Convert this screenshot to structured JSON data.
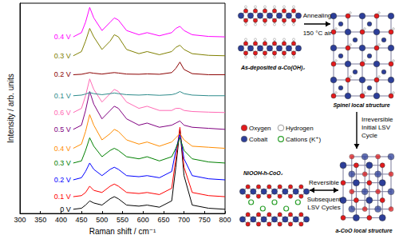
{
  "chart_data": {
    "type": "line",
    "x_label": "Raman shift / cm⁻¹",
    "y_label": "Intensity / arb. units",
    "xlim": [
      300,
      800
    ],
    "xticks": [
      300,
      350,
      400,
      450,
      500,
      550,
      600,
      650,
      700,
      750,
      800
    ],
    "ylim": [
      0,
      100
    ],
    "tick_labels": "x",
    "x": [
      430,
      450,
      460,
      470,
      480,
      500,
      520,
      530,
      540,
      560,
      590,
      610,
      640,
      670,
      680,
      690,
      700,
      720,
      760,
      800
    ],
    "series": [
      {
        "name": "0 V",
        "color": "#000000",
        "values": [
          2,
          2.5,
          4,
          6,
          5,
          4,
          7,
          8,
          7,
          4,
          3.5,
          4,
          3,
          6,
          22,
          40,
          18,
          4,
          2.5,
          2
        ]
      },
      {
        "name": "0.1 V",
        "color": "#ff0000",
        "values": [
          8,
          8.5,
          10,
          13,
          11,
          10,
          13,
          14,
          13,
          10,
          9.5,
          10,
          9,
          12,
          26,
          41,
          22,
          10,
          8.5,
          8
        ]
      },
      {
        "name": "0.2 V",
        "color": "#0000ff",
        "values": [
          16,
          17,
          20,
          24,
          21,
          18,
          21,
          22,
          21,
          18,
          17.5,
          18,
          17,
          20,
          30,
          38,
          26,
          18,
          16.5,
          16
        ]
      },
      {
        "name": "0.3 V",
        "color": "#008000",
        "values": [
          24,
          25,
          30,
          36,
          32,
          27,
          30,
          31,
          30,
          27,
          26,
          27,
          25,
          27,
          31,
          36,
          30,
          26,
          24.5,
          24
        ]
      },
      {
        "name": "0.4 V",
        "color": "#ff8c00",
        "values": [
          31,
          33,
          39,
          47,
          42,
          35,
          38,
          40,
          39,
          35,
          33,
          34,
          32,
          34,
          36,
          38,
          35,
          32,
          31.5,
          31
        ]
      },
      {
        "name": "0.5 V",
        "color": "#800080",
        "values": [
          40,
          42,
          49,
          58,
          52,
          45,
          49,
          51,
          50,
          45,
          42,
          43,
          41,
          42,
          43,
          44,
          42,
          41,
          40.5,
          40
        ]
      },
      {
        "name": "0.6 V",
        "color": "#ff69b4",
        "values": [
          48,
          50,
          56,
          64,
          59,
          53,
          57,
          59,
          58,
          53,
          50,
          51,
          49,
          49,
          50,
          50,
          49,
          48.5,
          48.2,
          48
        ]
      },
      {
        "name": "0.1 V",
        "color": "#2e8b8b",
        "values": [
          56,
          56.3,
          56.8,
          57.5,
          57,
          56.5,
          57,
          57.3,
          57,
          56.5,
          56.3,
          56.5,
          56.2,
          56.5,
          57,
          58,
          57,
          56.3,
          56,
          56
        ]
      },
      {
        "name": "0.2 V",
        "color": "#8b0000",
        "values": [
          66,
          66.2,
          66.6,
          67,
          66.7,
          66.3,
          66.8,
          67,
          66.8,
          66.3,
          66.2,
          66.4,
          66.2,
          67,
          69,
          72,
          68.5,
          66.5,
          66,
          66
        ]
      },
      {
        "name": "0.3 V",
        "color": "#808000",
        "values": [
          75,
          77,
          82,
          88,
          84,
          78,
          82,
          85,
          84,
          78,
          76,
          77,
          75.5,
          77,
          79,
          80,
          78,
          76,
          75.2,
          75
        ]
      },
      {
        "name": "0.4 V",
        "color": "#ff00ff",
        "values": [
          84,
          86,
          91,
          98,
          93,
          87,
          91,
          93,
          92,
          87,
          85,
          86,
          84.5,
          86,
          88,
          89,
          87,
          85,
          84.2,
          84
        ]
      }
    ]
  },
  "diagram": {
    "structures": [
      {
        "label": "As-deposited α-Co(OH)₂",
        "kind": "layered"
      },
      {
        "label": "Spinel local structure",
        "kind": "spinel"
      },
      {
        "label": "a-CoO local structure",
        "kind": "rocksalt"
      },
      {
        "label": "NiOOH-h-CoO₂",
        "kind": "layered_cations"
      }
    ],
    "arrows": [
      {
        "from": 0,
        "to": 1,
        "above": [
          "Annealing"
        ],
        "below": [
          "150 °C air"
        ],
        "double": false
      },
      {
        "from": 1,
        "to": 2,
        "beside": [
          "Irreversible",
          "Initial LSV",
          "Cycle"
        ],
        "double": false
      },
      {
        "from": 3,
        "to": 2,
        "above": [
          "Reversible"
        ],
        "below": [
          "Subsequent",
          "LSV Cycles"
        ],
        "double": true
      }
    ],
    "legend": [
      {
        "label": "Oxygen",
        "color": "#e31a1c",
        "marker": "circle"
      },
      {
        "label": "Hydrogen",
        "color": "#ffffff",
        "marker": "circle"
      },
      {
        "label": "Cobalt",
        "color": "#2c3e99",
        "marker": "circle"
      },
      {
        "label": "Cations (K⁺)",
        "color": "#2ca02c",
        "marker": "ring"
      }
    ]
  }
}
